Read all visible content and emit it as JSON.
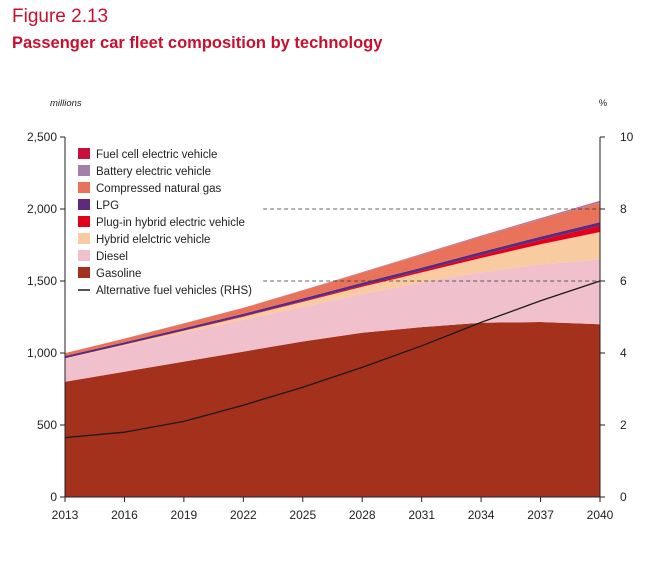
{
  "figure": {
    "number": "Figure 2.13",
    "title": "Passenger car fleet composition by technology"
  },
  "chart_data": {
    "type": "area",
    "title": "Passenger car fleet composition by technology",
    "ylabel_left": "millions",
    "ylabel_right": "%",
    "x": [
      2013,
      2016,
      2019,
      2022,
      2025,
      2028,
      2031,
      2034,
      2037,
      2040
    ],
    "xlim": [
      2013,
      2040
    ],
    "ylim_left": [
      0,
      2500
    ],
    "ylim_right": [
      0,
      10
    ],
    "yticks_left": [
      "0",
      "500",
      "1,000",
      "1,500",
      "2,000",
      "2,500"
    ],
    "yticks_right": [
      "0",
      "2",
      "4",
      "6",
      "8",
      "10"
    ],
    "xticks": [
      "2013",
      "2016",
      "2019",
      "2022",
      "2025",
      "2028",
      "2031",
      "2034",
      "2037",
      "2040"
    ],
    "stack_order": [
      "Gasoline",
      "Diesel",
      "Hybrid elelctric vehicle",
      "Plug-in hybrid electric vehicle",
      "LPG",
      "Compressed natural gas",
      "Battery electric vehicle",
      "Fuel cell electric vehicle"
    ],
    "series": [
      {
        "name": "Gasoline",
        "axis": "left",
        "color": "#a4311c",
        "values": [
          800,
          870,
          940,
          1010,
          1080,
          1140,
          1180,
          1210,
          1215,
          1200
        ]
      },
      {
        "name": "Diesel",
        "axis": "left",
        "color": "#f0c0cc",
        "values": [
          160,
          180,
          200,
          220,
          240,
          270,
          310,
          350,
          400,
          450
        ]
      },
      {
        "name": "Hybrid elelctric vehicle",
        "axis": "left",
        "color": "#f9cba0",
        "values": [
          4,
          8,
          14,
          22,
          35,
          50,
          70,
          100,
          140,
          190
        ]
      },
      {
        "name": "Plug-in hybrid electric vehicle",
        "axis": "left",
        "color": "#e3001b",
        "values": [
          0,
          1,
          2,
          3,
          5,
          8,
          12,
          20,
          30,
          45
        ]
      },
      {
        "name": "LPG",
        "axis": "left",
        "color": "#5e2a7e",
        "values": [
          15,
          16,
          17,
          18,
          19,
          20,
          21,
          22,
          23,
          24
        ]
      },
      {
        "name": "Compressed natural gas",
        "axis": "left",
        "color": "#e8735a",
        "values": [
          20,
          25,
          32,
          40,
          55,
          70,
          90,
          105,
          120,
          135
        ]
      },
      {
        "name": "Battery electric vehicle",
        "axis": "left",
        "color": "#a47fa8",
        "values": [
          0,
          0,
          1,
          1,
          2,
          3,
          4,
          5,
          7,
          9
        ]
      },
      {
        "name": "Fuel cell electric vehicle",
        "axis": "left",
        "color": "#c8103c",
        "values": [
          0,
          0,
          0,
          0,
          1,
          1,
          1,
          2,
          2,
          3
        ]
      },
      {
        "name": "Alternative fuel vehicles (RHS)",
        "axis": "right",
        "type": "line",
        "color": "#1a1a1a",
        "values": [
          1.65,
          1.8,
          2.1,
          2.55,
          3.05,
          3.6,
          4.2,
          4.85,
          5.45,
          6.0
        ]
      }
    ],
    "legend": {
      "placement": "top-left",
      "items": [
        {
          "label": "Fuel cell electric vehicle",
          "color": "#c8103c",
          "kind": "box"
        },
        {
          "label": "Battery electric vehicle",
          "color": "#a47fa8",
          "kind": "box"
        },
        {
          "label": "Compressed natural gas",
          "color": "#e8735a",
          "kind": "box"
        },
        {
          "label": "LPG",
          "color": "#5e2a7e",
          "kind": "box"
        },
        {
          "label": "Plug-in hybrid electric vehicle",
          "color": "#e3001b",
          "kind": "box"
        },
        {
          "label": "Hybrid elelctric vehicle",
          "color": "#f9cba0",
          "kind": "box"
        },
        {
          "label": "Diesel",
          "color": "#f0c0cc",
          "kind": "box"
        },
        {
          "label": "Gasoline",
          "color": "#a4311c",
          "kind": "box"
        },
        {
          "label": "Alternative fuel vehicles (RHS)",
          "color": "#1a1a1a",
          "kind": "line"
        }
      ]
    },
    "grid": false,
    "reference_lines": [
      {
        "axis": "left",
        "value": 2000,
        "style": "dashed",
        "x_from": 2023
      },
      {
        "axis": "left",
        "value": 1500,
        "style": "dashed",
        "x_from": 2023
      }
    ]
  }
}
